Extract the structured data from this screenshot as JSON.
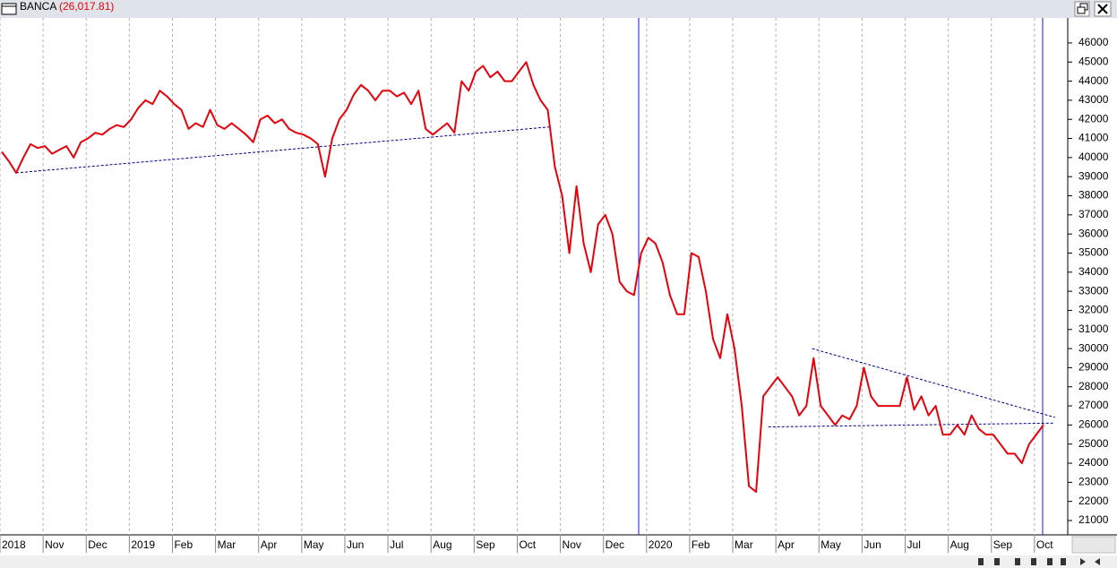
{
  "chart_data": {
    "type": "line",
    "title": "BANCA",
    "subtitle": "(26,017.81)",
    "categories": [
      "2018",
      null,
      null,
      null,
      null,
      null,
      "Nov",
      null,
      null,
      null,
      null,
      null,
      "Dec",
      null,
      null,
      null,
      null,
      null,
      "2019",
      null,
      null,
      null,
      null,
      null,
      "Feb",
      null,
      null,
      null,
      null,
      null,
      "Mar",
      null,
      null,
      null,
      null,
      null,
      "Apr",
      null,
      null,
      null,
      null,
      null,
      "May",
      null,
      null,
      null,
      null,
      null,
      "Jun",
      null,
      null,
      null,
      null,
      null,
      "Jul",
      null,
      null,
      null,
      null,
      null,
      "Aug",
      null,
      null,
      null,
      null,
      null,
      "Sep",
      null,
      null,
      null,
      null,
      null,
      "Oct",
      null,
      null,
      null,
      null,
      null,
      "Nov",
      null,
      null,
      null,
      null,
      null,
      "Dec",
      null,
      null,
      null,
      null,
      null,
      "2020",
      null,
      null,
      null,
      null,
      null,
      "Feb",
      null,
      null,
      null,
      null,
      null,
      "Mar",
      null,
      null,
      null,
      null,
      null,
      "Apr",
      null,
      null,
      null,
      null,
      null,
      "May",
      null,
      null,
      null,
      null,
      null,
      "Jun",
      null,
      null,
      null,
      null,
      null,
      "Jul",
      null,
      null,
      null,
      null,
      null,
      "Aug",
      null,
      null,
      null,
      null,
      null,
      "Sep",
      null,
      null,
      null,
      null,
      null,
      "Oct",
      null
    ],
    "series": [
      {
        "color": "#e8000b",
        "values": [
          40300,
          39800,
          39200,
          40000,
          40700,
          40500,
          40600,
          40200,
          40400,
          40600,
          40000,
          40800,
          41000,
          41300,
          41200,
          41500,
          41700,
          41600,
          42000,
          42600,
          43000,
          42800,
          43500,
          43200,
          42800,
          42500,
          41500,
          41800,
          41600,
          42500,
          41700,
          41500,
          41800,
          41500,
          41200,
          40800,
          42000,
          42200,
          41800,
          42000,
          41500,
          41300,
          41200,
          41000,
          40700,
          39000,
          41000,
          42000,
          42500,
          43300,
          43800,
          43500,
          43000,
          43500,
          43500,
          43200,
          43400,
          42800,
          43500,
          41500,
          41200,
          41500,
          41800,
          41300,
          44000,
          43500,
          44500,
          44800,
          44200,
          44500,
          44000,
          44000,
          44500,
          45000,
          43800,
          43000,
          42500,
          39500,
          38000,
          35000,
          38500,
          35500,
          34000,
          36500,
          37000,
          36000,
          33500,
          33000,
          32800,
          35000,
          35800,
          35500,
          34500,
          32800,
          31800,
          31800,
          35000,
          34800,
          33000,
          30500,
          29500,
          31800,
          30000,
          27000,
          22800,
          22500,
          27500,
          28000,
          28500,
          28000,
          27500,
          26500,
          27000,
          29500,
          27000,
          26500,
          26000,
          26500,
          26300,
          27000,
          29000,
          27500,
          27000,
          27000,
          27000,
          27000,
          28500,
          26800,
          27500,
          26500,
          27000,
          25500,
          25500,
          26000,
          25500,
          26500,
          25800,
          25500,
          25500,
          25000,
          24500,
          24500,
          24000,
          25000,
          25500,
          26000
        ]
      }
    ],
    "trend_lines": [
      {
        "color": "#00008b",
        "x": [
          2,
          76.2
        ],
        "values": [
          39200,
          41600
        ]
      },
      {
        "color": "#00008b",
        "x": [
          112.8,
          146.6
        ],
        "values": [
          30000,
          26400
        ]
      },
      {
        "color": "#00008b",
        "x": [
          106.7,
          146.6
        ],
        "values": [
          25900,
          26100
        ]
      }
    ],
    "ylim": [
      20250,
      47310
    ],
    "yticks": [
      21000,
      22000,
      23000,
      24000,
      25000,
      26000,
      27000,
      28000,
      29000,
      30000,
      31000,
      32000,
      33000,
      34000,
      35000,
      36000,
      37000,
      38000,
      39000,
      40000,
      41000,
      42000,
      43000,
      44000,
      45000,
      46000
    ],
    "grid": true
  }
}
